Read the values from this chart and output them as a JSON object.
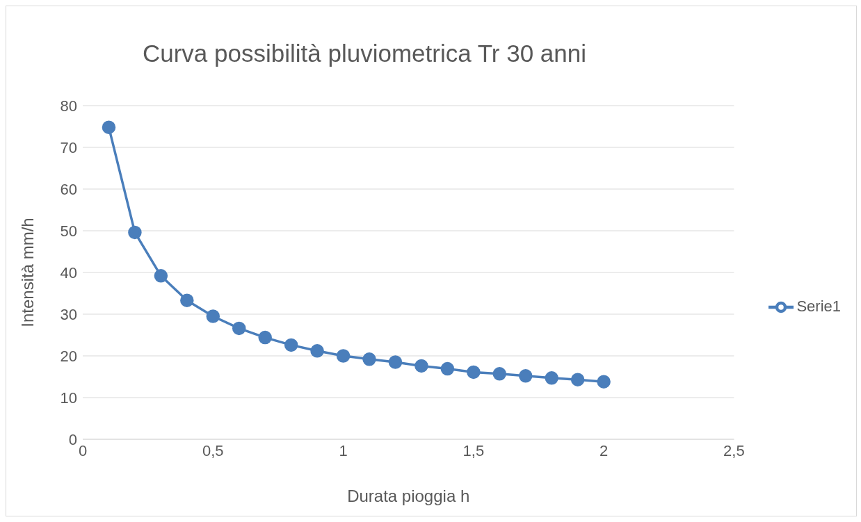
{
  "chart_data": {
    "type": "line",
    "title": "Curva possibilità pluviometrica Tr 30 anni",
    "xlabel": "Durata pioggia h",
    "ylabel": "Intensità mm/h",
    "x": [
      0.1,
      0.2,
      0.3,
      0.4,
      0.5,
      0.6,
      0.7,
      0.8,
      0.9,
      1.0,
      1.1,
      1.2,
      1.3,
      1.4,
      1.5,
      1.6,
      1.7,
      1.8,
      1.9,
      2.0
    ],
    "series": [
      {
        "name": "Serie1",
        "color": "#4a7ebb",
        "values": [
          74.8,
          49.6,
          39.2,
          33.3,
          29.5,
          26.6,
          24.4,
          22.6,
          21.2,
          20.0,
          19.2,
          18.5,
          17.6,
          16.9,
          16.1,
          15.7,
          15.2,
          14.7,
          14.3,
          13.8
        ]
      }
    ],
    "xlim": [
      0,
      2.5
    ],
    "xticks": [
      0,
      {
        "value": 0.5,
        "label": "0,5"
      },
      1,
      {
        "value": 1.5,
        "label": "1,5"
      },
      2,
      {
        "value": 2.5,
        "label": "2,5"
      }
    ],
    "ylim": [
      0,
      80
    ],
    "yticks": [
      0,
      10,
      20,
      30,
      40,
      50,
      60,
      70,
      80
    ],
    "grid": "y",
    "legend": "right",
    "marker": "circle",
    "line_style": "solid"
  }
}
